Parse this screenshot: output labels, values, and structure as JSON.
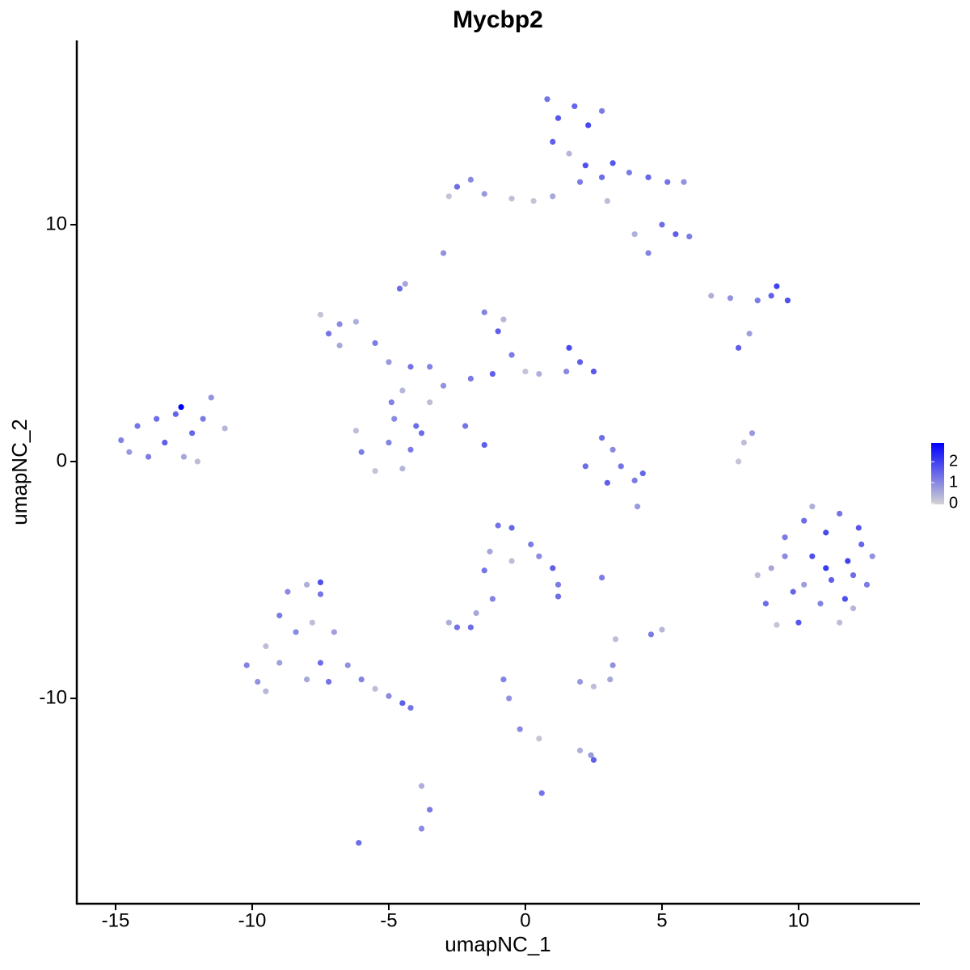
{
  "chart_data": {
    "type": "scatter",
    "title": "Mycbp2",
    "xlabel": "umapNC_1",
    "ylabel": "umapNC_2",
    "xlim": [
      -16.42,
      14.44
    ],
    "ylim": [
      -18.67,
      17.78
    ],
    "xticks": [
      -15,
      -10,
      -5,
      0,
      5,
      10
    ],
    "yticks": [
      -10,
      0,
      10
    ],
    "low_color": "#d3d3d3",
    "high_color": "#0000ff",
    "colorbar_lim": [
      0,
      2.9
    ],
    "colorbar_ticks": [
      0,
      1,
      2
    ],
    "x": [
      9.0,
      9.5,
      9.8,
      10.2,
      10.5,
      10.8,
      11.0,
      11.2,
      11.5,
      11.8,
      12.0,
      12.3,
      12.5,
      12.7,
      10.0,
      9.2,
      8.5,
      8.8,
      11.5,
      12.2,
      10.5,
      11.0,
      10.2,
      11.7,
      9.5,
      12.0,
      0.8,
      1.2,
      1.8,
      2.3,
      2.8,
      1.0,
      1.6,
      2.2,
      2.8,
      3.2,
      3.8,
      4.5,
      5.2,
      5.8,
      5.0,
      5.5,
      6.0,
      4.5,
      4.0,
      3.0,
      2.0,
      1.0,
      0.3,
      -0.5,
      -1.5,
      -2.5,
      -2.8,
      -2.0,
      -3.0,
      -4.6,
      -4.4,
      6.8,
      7.5,
      8.5,
      9.0,
      9.6,
      9.2,
      8.2,
      7.8,
      -7.5,
      -7.2,
      -6.8,
      -6.2,
      -6.8,
      -5.5,
      -5.0,
      -4.2,
      -3.5,
      -4.5,
      -4.8,
      -4.0,
      -3.5,
      -3.0,
      -2.0,
      -1.2,
      -0.5,
      0.0,
      0.5,
      1.5,
      2.0,
      2.5,
      1.6,
      -1.5,
      -1.0,
      -0.8,
      -6.2,
      -6.0,
      -5.5,
      -5.0,
      -4.5,
      -4.2,
      -3.8,
      -2.2,
      -1.5,
      -4.9,
      2.8,
      3.2,
      3.5,
      2.2,
      3.0,
      4.0,
      4.3,
      4.1,
      8.0,
      7.8,
      8.3,
      -14.8,
      -14.5,
      -14.2,
      -13.8,
      -13.5,
      -13.2,
      -12.8,
      -12.6,
      -12.5,
      -12.2,
      -11.8,
      -11.5,
      -11.0,
      -12.0,
      -1.0,
      -0.5,
      -1.3,
      -0.5,
      0.2,
      0.5,
      1.0,
      1.2,
      1.2,
      -1.5,
      -1.2,
      -1.8,
      -2.8,
      -2.5,
      -2.0,
      2.8,
      3.3,
      4.6,
      5.0,
      2.0,
      2.5,
      3.1,
      3.2,
      -0.8,
      -0.6,
      -0.2,
      0.5,
      2.0,
      2.4,
      2.5,
      0.6,
      -3.8,
      -3.5,
      -3.8,
      -6.1,
      -9.8,
      -10.2,
      -9.5,
      -9.0,
      -9.0,
      -8.7,
      -8.0,
      -7.5,
      -7.8,
      -8.4,
      -8.0,
      -7.5,
      -7.0,
      -7.2,
      -6.5,
      -6.0,
      -5.5,
      -5.0,
      -4.5,
      -4.2,
      -9.5,
      -7.5
    ],
    "y": [
      -4.5,
      -3.2,
      -5.5,
      -2.5,
      -4.0,
      -6.0,
      -3.0,
      -5.0,
      -2.2,
      -4.2,
      -6.2,
      -3.5,
      -5.2,
      -4.0,
      -6.8,
      -6.9,
      -4.8,
      -6.0,
      -6.8,
      -2.8,
      -1.9,
      -4.5,
      -5.2,
      -5.8,
      -4.0,
      -4.8,
      15.3,
      14.5,
      15.0,
      14.2,
      14.8,
      13.5,
      13.0,
      12.5,
      12.0,
      12.6,
      12.2,
      12.0,
      11.8,
      11.8,
      10.0,
      9.6,
      9.5,
      8.8,
      9.6,
      11.0,
      11.8,
      11.2,
      11.0,
      11.1,
      11.3,
      11.6,
      11.2,
      11.9,
      8.8,
      7.3,
      7.5,
      7.0,
      6.9,
      6.8,
      7.0,
      6.8,
      7.4,
      5.4,
      4.8,
      6.2,
      5.4,
      5.8,
      5.9,
      4.9,
      5.0,
      4.2,
      4.0,
      4.0,
      3.0,
      1.8,
      1.5,
      2.5,
      3.2,
      3.5,
      3.7,
      4.5,
      3.8,
      3.7,
      3.8,
      4.2,
      3.8,
      4.8,
      6.3,
      5.5,
      6.0,
      1.3,
      0.4,
      -0.4,
      0.8,
      -0.3,
      0.5,
      1.2,
      1.5,
      0.7,
      2.5,
      1.0,
      0.5,
      -0.2,
      -0.2,
      -0.9,
      -0.8,
      -0.5,
      -1.9,
      0.8,
      0.0,
      1.2,
      0.9,
      0.4,
      1.5,
      0.2,
      1.8,
      0.8,
      2.0,
      2.3,
      0.2,
      1.2,
      1.8,
      2.7,
      1.4,
      0.0,
      -2.7,
      -2.8,
      -3.8,
      -4.2,
      -3.5,
      -4.0,
      -4.5,
      -5.2,
      -5.7,
      -4.6,
      -5.8,
      -6.4,
      -6.8,
      -7.0,
      -7.0,
      -4.9,
      -7.5,
      -7.3,
      -7.1,
      -9.3,
      -9.5,
      -9.2,
      -8.6,
      -9.2,
      -10.0,
      -11.3,
      -11.7,
      -12.2,
      -12.4,
      -12.6,
      -14.0,
      -13.7,
      -14.7,
      -15.5,
      -16.1,
      -9.3,
      -8.6,
      -7.8,
      -8.5,
      -6.5,
      -5.5,
      -5.2,
      -5.6,
      -6.8,
      -7.2,
      -9.2,
      -8.5,
      -7.2,
      -9.3,
      -8.6,
      -9.2,
      -9.6,
      -9.9,
      -10.2,
      -10.4,
      -9.7,
      -5.1
    ],
    "color_values": [
      0.6,
      1.2,
      1.5,
      1.4,
      1.8,
      1.1,
      1.9,
      1.6,
      1.3,
      2.0,
      0.4,
      1.5,
      1.2,
      0.9,
      1.7,
      0.2,
      0.3,
      1.4,
      0.3,
      1.7,
      0.5,
      2.1,
      0.7,
      1.8,
      1.0,
      1.4,
      1.3,
      1.7,
      1.5,
      1.9,
      1.2,
      1.6,
      0.4,
      1.8,
      1.4,
      1.7,
      1.2,
      1.5,
      1.3,
      0.9,
      1.4,
      1.6,
      1.2,
      1.1,
      0.5,
      0.3,
      1.2,
      0.6,
      0.2,
      0.3,
      0.8,
      1.4,
      0.2,
      1.0,
      0.9,
      1.4,
      0.6,
      0.5,
      0.9,
      1.2,
      1.6,
      1.8,
      2.0,
      0.7,
      1.6,
      0.2,
      1.3,
      1.0,
      0.5,
      0.6,
      1.2,
      0.8,
      1.3,
      1.1,
      0.4,
      1.0,
      1.4,
      0.3,
      0.9,
      1.2,
      1.6,
      1.2,
      0.2,
      0.5,
      1.0,
      1.6,
      1.7,
      1.9,
      1.1,
      1.6,
      0.4,
      0.3,
      1.2,
      0.2,
      1.1,
      0.4,
      1.2,
      1.4,
      1.3,
      1.6,
      1.1,
      1.4,
      1.0,
      1.3,
      1.4,
      1.6,
      1.2,
      1.5,
      0.8,
      0.3,
      0.2,
      0.8,
      1.1,
      0.8,
      1.3,
      1.2,
      1.4,
      1.6,
      1.5,
      2.9,
      0.6,
      1.5,
      1.2,
      0.9,
      0.4,
      0.3,
      1.3,
      1.5,
      0.6,
      0.3,
      1.2,
      1.0,
      1.6,
      1.2,
      1.4,
      1.3,
      1.1,
      0.6,
      0.5,
      1.3,
      1.4,
      1.2,
      0.3,
      1.2,
      0.4,
      0.8,
      0.3,
      0.6,
      0.9,
      1.1,
      0.9,
      1.0,
      0.2,
      0.5,
      0.8,
      1.6,
      1.3,
      0.5,
      1.2,
      1.0,
      1.4,
      0.9,
      1.1,
      0.3,
      0.7,
      1.2,
      1.0,
      0.5,
      1.3,
      0.3,
      1.0,
      0.6,
      1.4,
      0.7,
      1.3,
      0.9,
      1.1,
      0.3,
      1.0,
      1.6,
      1.3,
      0.4,
      1.8
    ]
  }
}
